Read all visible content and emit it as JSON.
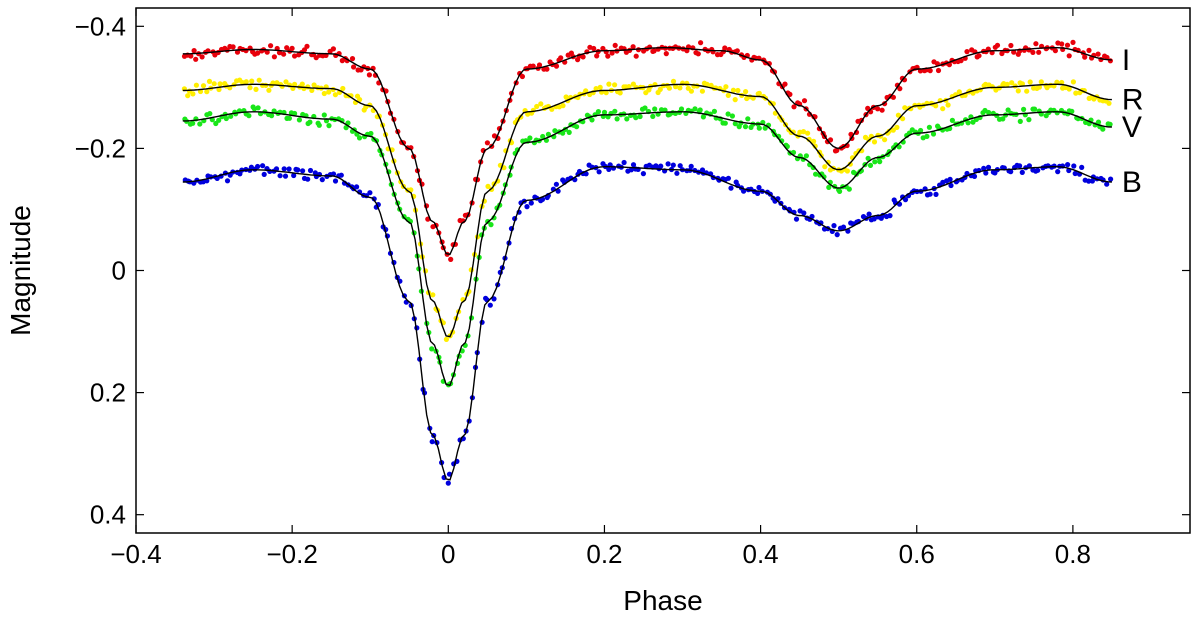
{
  "chart_data": {
    "type": "scatter",
    "title": "",
    "xlabel": "Phase",
    "ylabel": "Magnitude",
    "xlim": [
      -0.4,
      0.95
    ],
    "ylim": [
      -0.43,
      0.43
    ],
    "y_inverted": true,
    "grid": false,
    "x_ticks": [
      -0.4,
      -0.2,
      0,
      0.2,
      0.4,
      0.6,
      0.8
    ],
    "x_tick_labels": [
      "−0.4",
      "−0.2",
      "0",
      "0.2",
      "0.4",
      "0.6",
      "0.8"
    ],
    "y_ticks": [
      -0.4,
      -0.2,
      0,
      0.2,
      0.4
    ],
    "y_tick_labels": [
      "−0.4",
      "−0.2",
      "0",
      "0.2",
      "0.4"
    ],
    "phase_range": [
      -0.34,
      0.85
    ],
    "series": [
      {
        "name": "I",
        "color": "#e8000b",
        "label_position": "right",
        "model_points": [
          [
            -0.34,
            -0.355
          ],
          [
            -0.25,
            -0.362
          ],
          [
            -0.15,
            -0.355
          ],
          [
            -0.1,
            -0.33
          ],
          [
            -0.05,
            -0.2
          ],
          [
            -0.02,
            -0.08
          ],
          [
            0.0,
            -0.025
          ],
          [
            0.02,
            -0.08
          ],
          [
            0.05,
            -0.2
          ],
          [
            0.1,
            -0.33
          ],
          [
            0.2,
            -0.36
          ],
          [
            0.28,
            -0.365
          ],
          [
            0.35,
            -0.36
          ],
          [
            0.4,
            -0.345
          ],
          [
            0.45,
            -0.27
          ],
          [
            0.5,
            -0.2
          ],
          [
            0.55,
            -0.27
          ],
          [
            0.6,
            -0.33
          ],
          [
            0.7,
            -0.36
          ],
          [
            0.78,
            -0.365
          ],
          [
            0.85,
            -0.345
          ]
        ]
      },
      {
        "name": "R",
        "color": "#ffee00",
        "label_position": "right",
        "model_points": [
          [
            -0.34,
            -0.295
          ],
          [
            -0.25,
            -0.305
          ],
          [
            -0.15,
            -0.298
          ],
          [
            -0.1,
            -0.27
          ],
          [
            -0.05,
            -0.13
          ],
          [
            -0.02,
            0.05
          ],
          [
            0.0,
            0.11
          ],
          [
            0.02,
            0.05
          ],
          [
            0.05,
            -0.13
          ],
          [
            0.1,
            -0.26
          ],
          [
            0.2,
            -0.295
          ],
          [
            0.3,
            -0.305
          ],
          [
            0.4,
            -0.285
          ],
          [
            0.45,
            -0.22
          ],
          [
            0.5,
            -0.165
          ],
          [
            0.55,
            -0.22
          ],
          [
            0.6,
            -0.27
          ],
          [
            0.7,
            -0.3
          ],
          [
            0.78,
            -0.305
          ],
          [
            0.85,
            -0.28
          ]
        ]
      },
      {
        "name": "V",
        "color": "#19e619",
        "label_position": "right",
        "model_points": [
          [
            -0.34,
            -0.245
          ],
          [
            -0.25,
            -0.26
          ],
          [
            -0.15,
            -0.248
          ],
          [
            -0.1,
            -0.22
          ],
          [
            -0.05,
            -0.08
          ],
          [
            -0.02,
            0.12
          ],
          [
            0.0,
            0.19
          ],
          [
            0.02,
            0.12
          ],
          [
            0.05,
            -0.08
          ],
          [
            0.1,
            -0.21
          ],
          [
            0.2,
            -0.255
          ],
          [
            0.3,
            -0.26
          ],
          [
            0.4,
            -0.24
          ],
          [
            0.45,
            -0.185
          ],
          [
            0.5,
            -0.135
          ],
          [
            0.55,
            -0.185
          ],
          [
            0.6,
            -0.225
          ],
          [
            0.7,
            -0.255
          ],
          [
            0.78,
            -0.26
          ],
          [
            0.85,
            -0.235
          ]
        ]
      },
      {
        "name": "B",
        "color": "#0000dd",
        "label_position": "right",
        "model_points": [
          [
            -0.34,
            -0.145
          ],
          [
            -0.25,
            -0.165
          ],
          [
            -0.15,
            -0.155
          ],
          [
            -0.1,
            -0.12
          ],
          [
            -0.05,
            0.05
          ],
          [
            -0.02,
            0.27
          ],
          [
            0.0,
            0.345
          ],
          [
            0.02,
            0.27
          ],
          [
            0.05,
            0.05
          ],
          [
            0.1,
            -0.115
          ],
          [
            0.2,
            -0.17
          ],
          [
            0.3,
            -0.165
          ],
          [
            0.4,
            -0.13
          ],
          [
            0.45,
            -0.09
          ],
          [
            0.5,
            -0.065
          ],
          [
            0.55,
            -0.09
          ],
          [
            0.6,
            -0.13
          ],
          [
            0.7,
            -0.165
          ],
          [
            0.78,
            -0.17
          ],
          [
            0.85,
            -0.145
          ]
        ]
      }
    ]
  }
}
